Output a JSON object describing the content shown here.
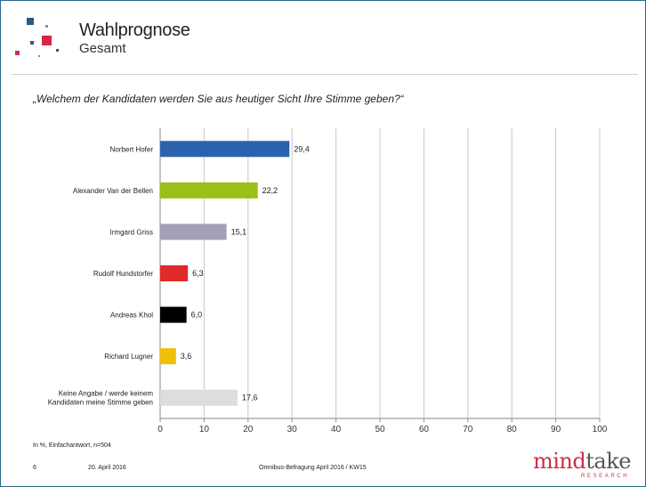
{
  "header": {
    "title": "Wahlprognose",
    "subtitle": "Gesamt"
  },
  "question": "„Welchem der Kandidaten werden Sie aus heutiger Sicht Ihre Stimme geben?“",
  "chart_data": {
    "type": "bar",
    "orientation": "horizontal",
    "categories": [
      "Norbert Hofer",
      "Alexander Van der Bellen",
      "Irmgard Griss",
      "Rudolf Hundstorfer",
      "Andreas Khol",
      "Richard Lugner",
      "Keine Angabe / werde keinem Kandidaten meine Stimme geben"
    ],
    "category_lines": [
      [
        "Norbert Hofer"
      ],
      [
        "Alexander Van der Bellen"
      ],
      [
        "Irmgard Griss"
      ],
      [
        "Rudolf Hundstorfer"
      ],
      [
        "Andreas Khol"
      ],
      [
        "Richard Lugner"
      ],
      [
        "Keine Angabe / werde keinem",
        "Kandidaten meine Stimme geben"
      ]
    ],
    "values": [
      29.4,
      22.2,
      15.1,
      6.3,
      6.0,
      3.6,
      17.6
    ],
    "value_labels": [
      "29,4",
      "22,2",
      "15,1",
      "6,3",
      "6,0",
      "3,6",
      "17,6"
    ],
    "colors": [
      "#2c62ad",
      "#9bbf17",
      "#a39fb9",
      "#e02a2a",
      "#000000",
      "#efc00a",
      "#dddddd"
    ],
    "xlim": [
      0,
      100
    ],
    "xticks": [
      0,
      10,
      20,
      30,
      40,
      50,
      60,
      70,
      80,
      90,
      100
    ],
    "grid": true
  },
  "footer": {
    "note": "In %, Einfachantwort, n=504",
    "page": "6",
    "date": "20. April 2016",
    "source": "Omnibus-Befragung April 2016 / KW15",
    "brand_mind": "mind",
    "brand_take": "take",
    "brand_sub": "RESEARCH"
  },
  "logo_colors": [
    "#2d5a7a",
    "#d6264a",
    "#c8304a",
    "#2d5a7a"
  ]
}
